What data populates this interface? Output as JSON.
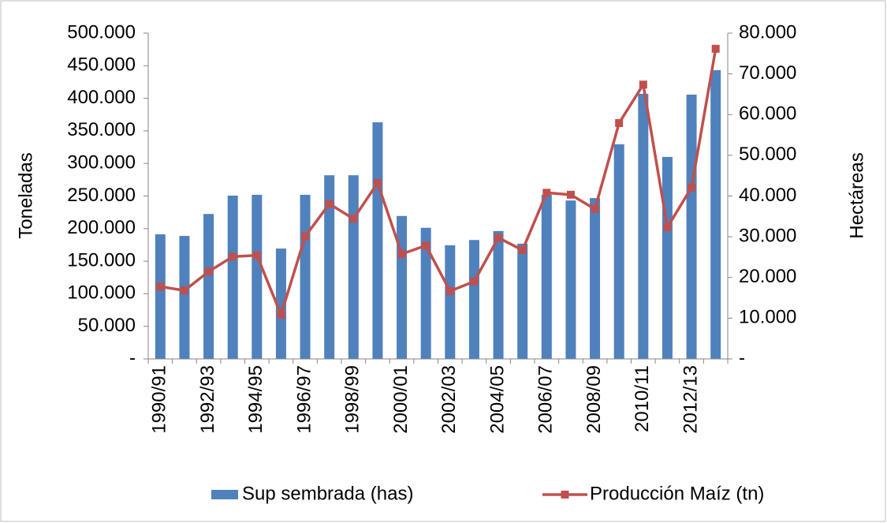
{
  "chart_data": {
    "type": "bar_line",
    "y_label": "Toneladas",
    "y2_label": "Hectáreas",
    "categories": [
      "1990/91",
      null,
      "1992/93",
      null,
      "1994/95",
      null,
      "1996/97",
      null,
      "1998/99",
      null,
      "2000/01",
      null,
      "2002/03",
      null,
      "2004/05",
      null,
      "2006/07",
      null,
      "2008/09",
      null,
      "2010/11",
      null,
      "2012/13",
      null
    ],
    "series": [
      {
        "name": "Sup sembrada (has)",
        "type": "bar",
        "axis": "y2",
        "color": "#4f81bd",
        "values": [
          30600,
          30200,
          35600,
          40100,
          40300,
          27100,
          40300,
          45100,
          45100,
          58100,
          35100,
          32200,
          27900,
          29200,
          31400,
          28300,
          40300,
          38900,
          39500,
          52700,
          65100,
          49600,
          64900,
          70900
        ]
      },
      {
        "name": "Producción Maíz (tn)",
        "type": "line",
        "axis": "y",
        "color": "#c0504d",
        "values": [
          111000,
          105000,
          134000,
          157000,
          159000,
          68000,
          188000,
          238000,
          215000,
          270000,
          161000,
          174000,
          104000,
          119000,
          186000,
          167000,
          255000,
          252000,
          230000,
          362000,
          421000,
          202000,
          263000,
          476000
        ]
      }
    ],
    "ylim": [
      0,
      500000
    ],
    "yticks": [
      {
        "value": 0,
        "label": "-"
      },
      {
        "value": 50000,
        "label": "50.000"
      },
      {
        "value": 100000,
        "label": "100.000"
      },
      {
        "value": 150000,
        "label": "150.000"
      },
      {
        "value": 200000,
        "label": "200.000"
      },
      {
        "value": 250000,
        "label": "250.000"
      },
      {
        "value": 300000,
        "label": "300.000"
      },
      {
        "value": 350000,
        "label": "350.000"
      },
      {
        "value": 400000,
        "label": "400.000"
      },
      {
        "value": 450000,
        "label": "450.000"
      },
      {
        "value": 500000,
        "label": "500.000"
      }
    ],
    "y2lim": [
      0,
      80000
    ],
    "y2ticks": [
      {
        "value": 0,
        "label": "-"
      },
      {
        "value": 10000,
        "label": "10.000"
      },
      {
        "value": 20000,
        "label": "20.000"
      },
      {
        "value": 30000,
        "label": "30.000"
      },
      {
        "value": 40000,
        "label": "40.000"
      },
      {
        "value": 50000,
        "label": "50.000"
      },
      {
        "value": 60000,
        "label": "60.000"
      },
      {
        "value": 70000,
        "label": "70.000"
      },
      {
        "value": 80000,
        "label": "80.000"
      }
    ],
    "legend": "bottom"
  }
}
